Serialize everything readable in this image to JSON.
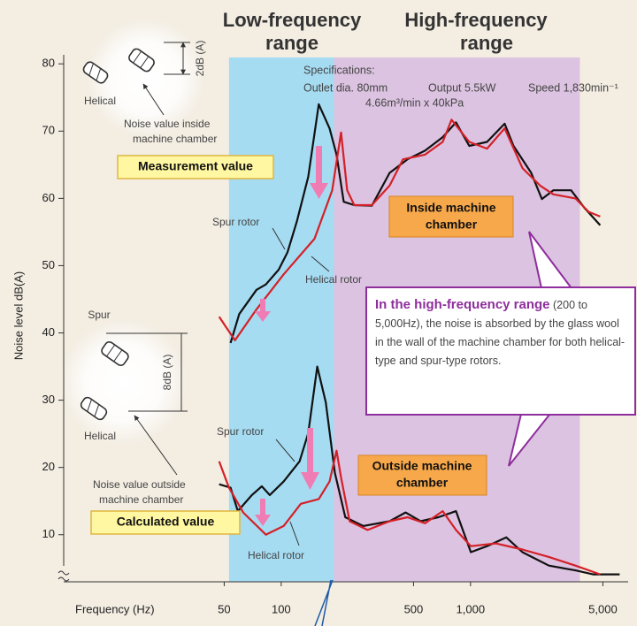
{
  "chart_data": {
    "type": "line",
    "xlabel": "Frequency (Hz)",
    "ylabel": "Noise level dB(A)",
    "xscale": "log",
    "xlim": [
      7.1,
      6800
    ],
    "ylim": [
      3,
      82
    ],
    "xticks": [
      50,
      100,
      500,
      {
        "value": 1000,
        "label": "1,000"
      },
      {
        "value": 5000,
        "label": "5,000"
      }
    ],
    "yticks": [
      10,
      20,
      30,
      40,
      50,
      60,
      70,
      80
    ],
    "bands": [
      {
        "label": [
          "Low-frequency",
          "range"
        ],
        "range": [
          53,
          190
        ],
        "color": "#a6dcf2",
        "label_color": "#1b7dc6"
      },
      {
        "label": [
          "High-frequency",
          "range"
        ],
        "range": [
          190,
          3780
        ],
        "color": "#dcc3e1",
        "label_color": "#8e2e9c"
      }
    ],
    "series": [
      {
        "name": "Spur rotor",
        "color": "#111111",
        "x": [
          54,
          60,
          74,
          83,
          97,
          108,
          121,
          139,
          158,
          180,
          196,
          214,
          243,
          301,
          374,
          464,
          575,
          713,
          838,
          985,
          1222,
          1514,
          1687,
          2091,
          2381,
          2737,
          3396,
          3990,
          4842
        ],
        "values": [
          38.5,
          42.8,
          46.4,
          47.2,
          49.4,
          52,
          56.6,
          63.2,
          74,
          70.4,
          66.5,
          59.5,
          59,
          58.9,
          63.8,
          65.8,
          67.1,
          69.1,
          71.3,
          67.8,
          68.4,
          71.1,
          67.8,
          63.8,
          59.9,
          61.2,
          61.2,
          58.6,
          56
        ]
      },
      {
        "name": "Helical rotor",
        "color": "#d42027",
        "x": [
          47,
          57,
          74,
          103,
          150,
          186,
          207,
          223,
          243,
          301,
          374,
          440,
          575,
          713,
          794,
          985,
          1222,
          1514,
          1880,
          2330,
          2737,
          3580,
          4210,
          4842
        ],
        "values": [
          42.4,
          38.9,
          43.5,
          48.7,
          54,
          61.2,
          69.8,
          61.2,
          59,
          59,
          61.9,
          65.8,
          66.5,
          68.4,
          71.7,
          68.4,
          67.4,
          70.4,
          64.5,
          61.9,
          60.6,
          60,
          58,
          57.3
        ]
      },
      {
        "name": "Spur rotor",
        "color": "#111111",
        "x": [
          47,
          54,
          59,
          70,
          79,
          87,
          103,
          125,
          139,
          155,
          172,
          192,
          218,
          271,
          374,
          454,
          545,
          676,
          838,
          1004,
          1222,
          1546,
          1880,
          2594,
          3580,
          4436,
          6133
        ],
        "values": [
          17.5,
          17,
          13.5,
          15.9,
          17.2,
          15.9,
          17.9,
          20.9,
          25.1,
          35,
          29.7,
          19.2,
          12.6,
          11.3,
          12,
          13.3,
          12,
          12.6,
          13.5,
          7.4,
          8.3,
          9.6,
          7.4,
          5.4,
          4.7,
          4.1,
          4.1
        ]
      },
      {
        "name": "Helical rotor",
        "color": "#d42027",
        "x": [
          47,
          53,
          63,
          83,
          103,
          127,
          158,
          180,
          196,
          207,
          230,
          286,
          374,
          464,
          575,
          713,
          838,
          1004,
          1358,
          1880,
          2594,
          3580,
          4842
        ],
        "values": [
          20.9,
          17,
          13.3,
          10,
          11.3,
          14.6,
          15.3,
          17.9,
          22.5,
          18.5,
          12,
          10.7,
          12,
          12.6,
          11.7,
          13.5,
          10.7,
          8.3,
          8.7,
          7.8,
          6.7,
          5.4,
          4.1
        ]
      }
    ]
  },
  "specs": {
    "heading": "Specifications:",
    "outlet": "Outlet dia. 80mm",
    "output": "Output 5.5kW",
    "speed": "Speed 1,830min⁻¹",
    "flow": "4.66m³/min x 40kPa"
  },
  "inside": {
    "helical": "Helical",
    "note": [
      "Noise value inside",
      "machine chamber"
    ],
    "gap": "2dB (A)",
    "badge": "Measurement value",
    "chamber": [
      "Inside machine",
      "chamber"
    ]
  },
  "outside": {
    "spur": "Spur",
    "helical": "Helical",
    "note": [
      "Noise value outside",
      "machine chamber"
    ],
    "gap": "8dB (A)",
    "badge": "Calculated value",
    "chamber": [
      "Outside machine",
      "chamber"
    ]
  },
  "callout": {
    "highlight": "In the high-frequency range",
    "text": "(200 to 5,000Hz), the noise is absorbed by the glass wool in the wall of the machine chamber for both helical-type and spur-type rotors."
  }
}
